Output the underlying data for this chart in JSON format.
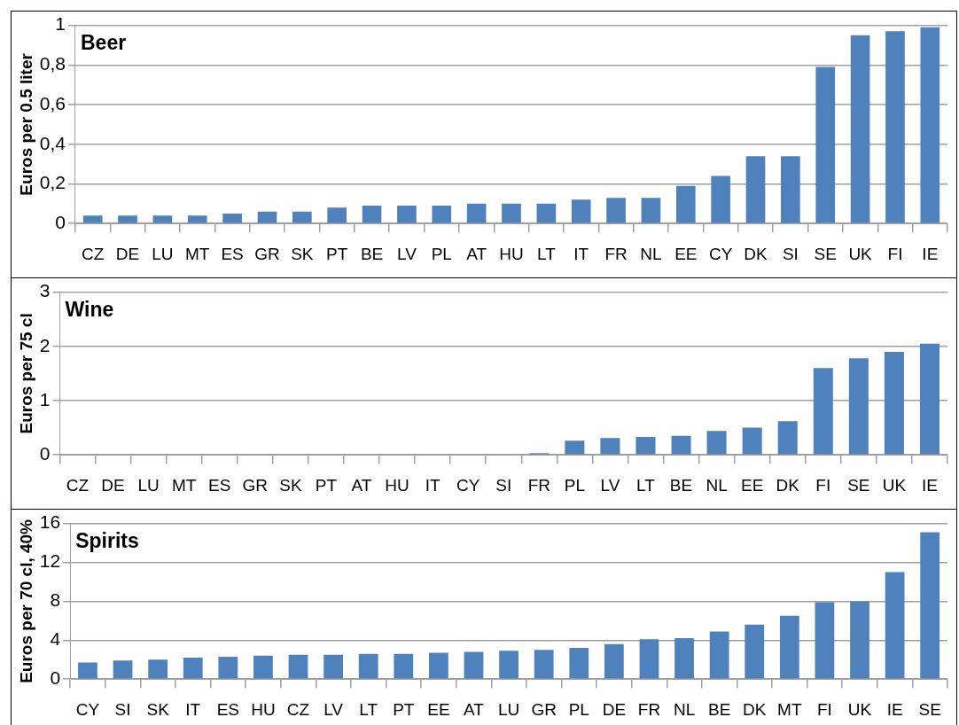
{
  "chart_data": [
    {
      "type": "bar",
      "title": "Beer",
      "ylabel": "Euros per 0.5 liter",
      "color": "#4f81bd",
      "grid": "y",
      "legend": false,
      "categories": [
        "CZ",
        "DE",
        "LU",
        "MT",
        "ES",
        "GR",
        "SK",
        "PT",
        "BE",
        "LV",
        "PL",
        "AT",
        "HU",
        "LT",
        "IT",
        "FR",
        "NL",
        "EE",
        "CY",
        "DK",
        "SI",
        "SE",
        "UK",
        "FI",
        "IE"
      ],
      "values": [
        0.04,
        0.04,
        0.04,
        0.04,
        0.05,
        0.06,
        0.06,
        0.08,
        0.09,
        0.09,
        0.09,
        0.1,
        0.1,
        0.1,
        0.12,
        0.13,
        0.13,
        0.19,
        0.24,
        0.34,
        0.34,
        0.79,
        0.95,
        0.97,
        0.99
      ],
      "ylim": [
        0,
        1
      ],
      "yticks": [
        0,
        {
          "value": 0.2,
          "label": "0,2"
        },
        {
          "value": 0.4,
          "label": "0,4"
        },
        {
          "value": 0.6,
          "label": "0,6"
        },
        {
          "value": 0.8,
          "label": "0,8"
        },
        1
      ]
    },
    {
      "type": "bar",
      "title": "Wine",
      "ylabel": "Euros per 75 cl",
      "color": "#4f81bd",
      "grid": "y",
      "legend": false,
      "categories": [
        "CZ",
        "DE",
        "LU",
        "MT",
        "ES",
        "GR",
        "SK",
        "PT",
        "AT",
        "HU",
        "IT",
        "CY",
        "SI",
        "FR",
        "PL",
        "LV",
        "LT",
        "BE",
        "NL",
        "EE",
        "DK",
        "FI",
        "SE",
        "UK",
        "IE"
      ],
      "values": [
        0,
        0,
        0,
        0,
        0,
        0,
        0,
        0,
        0,
        0,
        0,
        0,
        0,
        0.03,
        0.26,
        0.31,
        0.33,
        0.35,
        0.44,
        0.5,
        0.62,
        1.6,
        1.78,
        1.9,
        2.05
      ],
      "ylim": [
        0,
        3
      ],
      "yticks": [
        0,
        1,
        2,
        3
      ]
    },
    {
      "type": "bar",
      "title": "Spirits",
      "ylabel": "Euros per 70 cl, 40%",
      "color": "#4f81bd",
      "grid": "y",
      "legend": false,
      "categories": [
        "CY",
        "SI",
        "SK",
        "IT",
        "ES",
        "HU",
        "CZ",
        "LV",
        "LT",
        "PT",
        "EE",
        "AT",
        "LU",
        "GR",
        "PL",
        "DE",
        "FR",
        "NL",
        "BE",
        "DK",
        "MT",
        "FI",
        "UK",
        "IE",
        "SE"
      ],
      "values": [
        1.7,
        1.9,
        2.0,
        2.2,
        2.3,
        2.4,
        2.5,
        2.5,
        2.6,
        2.6,
        2.7,
        2.8,
        2.9,
        3.0,
        3.2,
        3.6,
        4.1,
        4.2,
        4.9,
        5.6,
        6.5,
        7.9,
        8.0,
        11.0,
        15.1
      ],
      "ylim": [
        0,
        16
      ],
      "yticks": [
        0,
        4,
        8,
        12,
        16
      ]
    }
  ]
}
